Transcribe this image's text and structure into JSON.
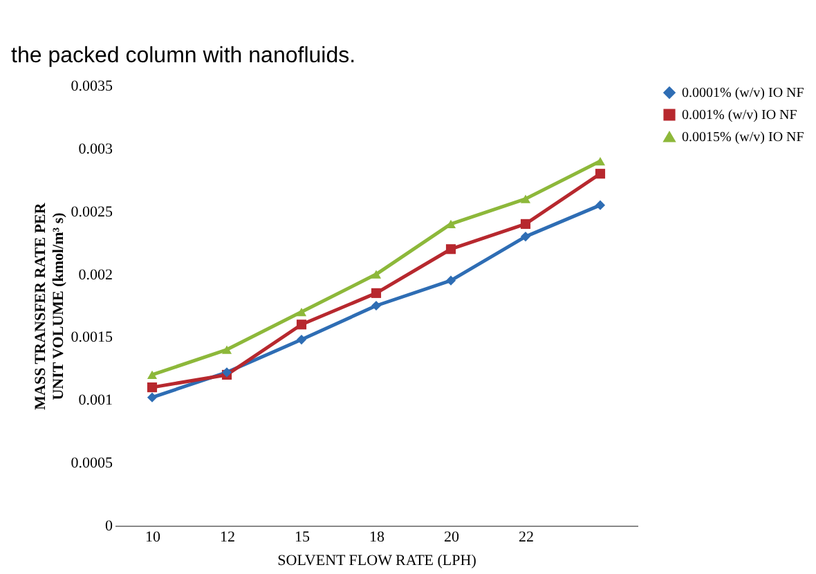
{
  "chart_data": {
    "type": "line",
    "xlabel": "SOLVENT FLOW RATE (LPH)",
    "ylabel": "MASS TRANSFER RATE PER UNIT VOLUME (kmol/m³ s)",
    "annotations": [
      "the packed column with nanofluids."
    ],
    "categories": [
      "10",
      "12",
      "15",
      "18",
      "20",
      "22",
      null
    ],
    "ylim": [
      0,
      0.0035
    ],
    "yticks": [
      0,
      0.0005,
      0.001,
      0.0015,
      0.002,
      0.0025,
      0.003,
      0.0035
    ],
    "grid": false,
    "legend": "top right",
    "series": [
      {
        "name": "0.0001% (w/v) IO NF",
        "color": "#2e6db4",
        "marker": "diamond",
        "values": [
          0.00102,
          0.00122,
          0.00148,
          0.00175,
          0.00195,
          0.0023,
          0.00255
        ]
      },
      {
        "name": "0.001% (w/v) IO NF",
        "color": "#b7282e",
        "marker": "square",
        "values": [
          0.0011,
          0.0012,
          0.0016,
          0.00185,
          0.0022,
          0.0024,
          0.0028
        ]
      },
      {
        "name": "0.0015% (w/v) IO NF",
        "color": "#8db83a",
        "marker": "triangle",
        "values": [
          0.0012,
          0.0014,
          0.0017,
          0.002,
          0.0024,
          0.0026,
          0.0029
        ]
      }
    ]
  }
}
